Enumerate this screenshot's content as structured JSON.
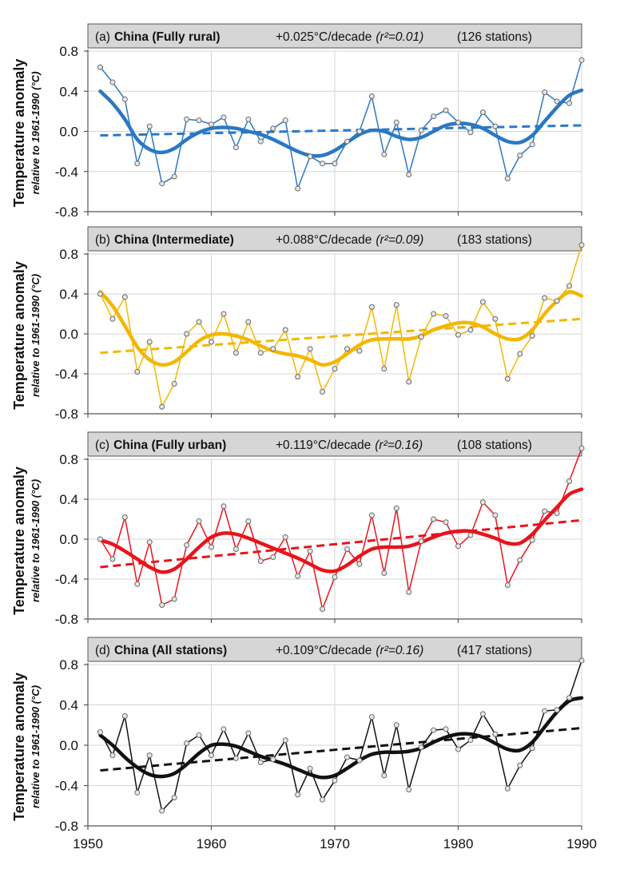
{
  "x_axis": {
    "ticks": [
      1950,
      1960,
      1970,
      1980,
      1990
    ],
    "tick_labels": [
      "1950",
      "1960",
      "1970",
      "1980",
      "1990"
    ],
    "xlim": [
      1950,
      1990
    ]
  },
  "chart_data": [
    {
      "type": "line",
      "panel_id": "(a)",
      "title": "China (Fully rural)",
      "trend": "+0.025°C/decade",
      "r2": "(r²=0.01)",
      "stations": "(126 stations)",
      "ylabel": "Temperature anomaly",
      "ylabel_sub": "relative to 1961-1990 (°C)",
      "ylim": [
        -0.8,
        0.8
      ],
      "yticks": [
        -0.8,
        -0.4,
        0.0,
        0.4,
        0.8
      ],
      "ytick_labels": [
        "-0.8",
        "-0.4",
        "0.0",
        "0.4",
        "0.8"
      ],
      "grid": true,
      "color": "#2a78c4",
      "x": [
        1951,
        1952,
        1953,
        1954,
        1955,
        1956,
        1957,
        1958,
        1959,
        1960,
        1961,
        1962,
        1963,
        1964,
        1965,
        1966,
        1967,
        1968,
        1969,
        1970,
        1971,
        1972,
        1973,
        1974,
        1975,
        1976,
        1977,
        1978,
        1979,
        1980,
        1981,
        1982,
        1983,
        1984,
        1985,
        1986,
        1987,
        1988,
        1989,
        1990
      ],
      "values": [
        0.64,
        0.49,
        0.32,
        -0.32,
        0.05,
        -0.52,
        -0.45,
        0.12,
        0.11,
        0.07,
        0.14,
        -0.16,
        0.12,
        -0.1,
        0.03,
        0.11,
        -0.57,
        -0.25,
        -0.32,
        -0.32,
        -0.1,
        0.0,
        0.35,
        -0.23,
        0.09,
        -0.43,
        0.01,
        0.15,
        0.21,
        0.09,
        -0.01,
        0.19,
        0.05,
        -0.47,
        -0.24,
        -0.13,
        0.39,
        0.3,
        0.28,
        0.71
      ],
      "smooth": [
        0.4,
        0.28,
        0.12,
        -0.08,
        -0.18,
        -0.21,
        -0.17,
        -0.08,
        -0.01,
        0.03,
        0.04,
        0.03,
        0.0,
        -0.03,
        -0.08,
        -0.14,
        -0.2,
        -0.24,
        -0.24,
        -0.19,
        -0.11,
        -0.03,
        0.01,
        0.0,
        -0.05,
        -0.08,
        -0.06,
        0.0,
        0.06,
        0.08,
        0.07,
        0.03,
        -0.04,
        -0.1,
        -0.11,
        -0.04,
        0.1,
        0.24,
        0.36,
        0.41
      ],
      "trendline": [
        -0.04,
        0.06
      ]
    },
    {
      "type": "line",
      "panel_id": "(b)",
      "title": "China (Intermediate)",
      "trend": "+0.088°C/decade",
      "r2": "(r²=0.09)",
      "stations": "(183 stations)",
      "ylabel": "Temperature anomaly",
      "ylabel_sub": "relative to 1961-1990 (°C)",
      "ylim": [
        -0.8,
        0.8
      ],
      "yticks": [
        -0.8,
        -0.4,
        0.0,
        0.4,
        0.8
      ],
      "ytick_labels": [
        "-0.8",
        "-0.4",
        "0.0",
        "0.4",
        "0.8"
      ],
      "grid": true,
      "color": "#f2b705",
      "x": [
        1951,
        1952,
        1953,
        1954,
        1955,
        1956,
        1957,
        1958,
        1959,
        1960,
        1961,
        1962,
        1963,
        1964,
        1965,
        1966,
        1967,
        1968,
        1969,
        1970,
        1971,
        1972,
        1973,
        1974,
        1975,
        1976,
        1977,
        1978,
        1979,
        1980,
        1981,
        1982,
        1983,
        1984,
        1985,
        1986,
        1987,
        1988,
        1989,
        1990
      ],
      "values": [
        0.4,
        0.15,
        0.37,
        -0.38,
        -0.08,
        -0.73,
        -0.5,
        0.0,
        0.12,
        -0.08,
        0.2,
        -0.19,
        0.12,
        -0.19,
        -0.15,
        0.04,
        -0.43,
        -0.15,
        -0.58,
        -0.35,
        -0.15,
        -0.17,
        0.27,
        -0.35,
        0.29,
        -0.48,
        -0.03,
        0.2,
        0.18,
        -0.01,
        0.04,
        0.32,
        0.15,
        -0.45,
        -0.2,
        -0.02,
        0.36,
        0.33,
        0.48,
        0.89
      ],
      "smooth": [
        0.42,
        0.28,
        0.08,
        -0.13,
        -0.26,
        -0.31,
        -0.28,
        -0.18,
        -0.07,
        -0.01,
        0.0,
        -0.02,
        -0.06,
        -0.12,
        -0.17,
        -0.2,
        -0.22,
        -0.26,
        -0.31,
        -0.28,
        -0.2,
        -0.11,
        -0.06,
        -0.05,
        -0.05,
        -0.05,
        -0.02,
        0.04,
        0.08,
        0.11,
        0.11,
        0.07,
        0.0,
        -0.05,
        -0.05,
        0.04,
        0.2,
        0.33,
        0.42,
        0.38
      ],
      "trendline": [
        -0.19,
        0.15
      ]
    },
    {
      "type": "line",
      "panel_id": "(c)",
      "title": "China (Fully urban)",
      "trend": "+0.119°C/decade",
      "r2": "(r²=0.16)",
      "stations": "(108 stations)",
      "ylabel": "Temperature anomaly",
      "ylabel_sub": "relative to 1961-1990 (°C)",
      "ylim": [
        -0.8,
        0.8
      ],
      "yticks": [
        -0.8,
        -0.4,
        0.0,
        0.4,
        0.8
      ],
      "ytick_labels": [
        "-0.8",
        "-0.4",
        "0.0",
        "0.4",
        "0.8"
      ],
      "grid": true,
      "color": "#e8141c",
      "x": [
        1951,
        1952,
        1953,
        1954,
        1955,
        1956,
        1957,
        1958,
        1959,
        1960,
        1961,
        1962,
        1963,
        1964,
        1965,
        1966,
        1967,
        1968,
        1969,
        1970,
        1971,
        1972,
        1973,
        1974,
        1975,
        1976,
        1977,
        1978,
        1979,
        1980,
        1981,
        1982,
        1983,
        1984,
        1985,
        1986,
        1987,
        1988,
        1989,
        1990
      ],
      "values": [
        0.0,
        -0.2,
        0.22,
        -0.45,
        -0.03,
        -0.66,
        -0.6,
        -0.06,
        0.18,
        -0.08,
        0.33,
        -0.1,
        0.18,
        -0.22,
        -0.18,
        0.02,
        -0.37,
        -0.12,
        -0.7,
        -0.38,
        -0.1,
        -0.25,
        0.24,
        -0.34,
        0.31,
        -0.53,
        -0.02,
        0.2,
        0.17,
        -0.07,
        0.04,
        0.37,
        0.24,
        -0.46,
        -0.21,
        -0.01,
        0.28,
        0.26,
        0.58,
        0.91
      ],
      "smooth": [
        -0.01,
        -0.05,
        -0.12,
        -0.2,
        -0.28,
        -0.33,
        -0.3,
        -0.2,
        -0.08,
        0.02,
        0.06,
        0.05,
        0.01,
        -0.04,
        -0.09,
        -0.14,
        -0.19,
        -0.25,
        -0.31,
        -0.32,
        -0.26,
        -0.17,
        -0.1,
        -0.08,
        -0.08,
        -0.07,
        -0.03,
        0.02,
        0.06,
        0.08,
        0.08,
        0.05,
        0.01,
        -0.04,
        -0.04,
        0.05,
        0.19,
        0.32,
        0.45,
        0.5
      ],
      "trendline": [
        -0.28,
        0.19
      ]
    },
    {
      "type": "line",
      "panel_id": "(d)",
      "title": "China (All stations)",
      "trend": "+0.109°C/decade",
      "r2": "(r²=0.16)",
      "stations": "(417 stations)",
      "ylabel": "Temperature anomaly",
      "ylabel_sub": "relative to 1961-1990 (°C)",
      "ylim": [
        -0.8,
        0.8
      ],
      "yticks": [
        -0.8,
        -0.4,
        0.0,
        0.4,
        0.8
      ],
      "ytick_labels": [
        "-0.8",
        "-0.4",
        "0.0",
        "0.4",
        "0.8"
      ],
      "grid": true,
      "color": "#111111",
      "x": [
        1951,
        1952,
        1953,
        1954,
        1955,
        1956,
        1957,
        1958,
        1959,
        1960,
        1961,
        1962,
        1963,
        1964,
        1965,
        1966,
        1967,
        1968,
        1969,
        1970,
        1971,
        1972,
        1973,
        1974,
        1975,
        1976,
        1977,
        1978,
        1979,
        1980,
        1981,
        1982,
        1983,
        1984,
        1985,
        1986,
        1987,
        1988,
        1989,
        1990
      ],
      "values": [
        0.13,
        -0.1,
        0.29,
        -0.47,
        -0.1,
        -0.65,
        -0.52,
        0.02,
        0.1,
        -0.1,
        0.16,
        -0.13,
        0.12,
        -0.17,
        -0.14,
        0.05,
        -0.49,
        -0.23,
        -0.54,
        -0.35,
        -0.12,
        -0.15,
        0.28,
        -0.3,
        0.2,
        -0.44,
        -0.02,
        0.15,
        0.16,
        -0.04,
        0.05,
        0.31,
        0.11,
        -0.43,
        -0.2,
        -0.03,
        0.34,
        0.35,
        0.47,
        0.84
      ],
      "smooth": [
        0.1,
        0.0,
        -0.12,
        -0.22,
        -0.29,
        -0.31,
        -0.28,
        -0.19,
        -0.08,
        0.0,
        0.01,
        -0.01,
        -0.06,
        -0.11,
        -0.15,
        -0.19,
        -0.24,
        -0.29,
        -0.32,
        -0.3,
        -0.23,
        -0.15,
        -0.09,
        -0.07,
        -0.07,
        -0.06,
        -0.03,
        0.03,
        0.08,
        0.11,
        0.11,
        0.08,
        0.02,
        -0.04,
        -0.05,
        0.03,
        0.18,
        0.33,
        0.44,
        0.47
      ],
      "trendline": [
        -0.25,
        0.17
      ]
    }
  ]
}
